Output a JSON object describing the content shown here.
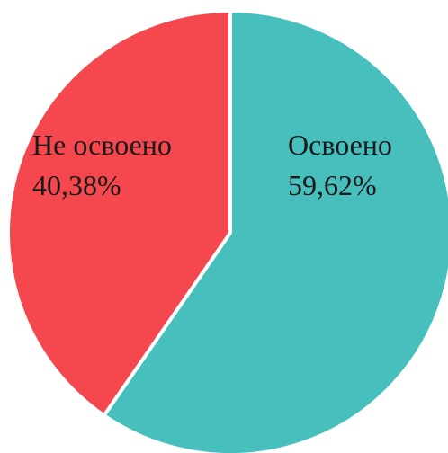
{
  "chart_data": {
    "type": "pie",
    "start_angle_deg": 0,
    "direction": "clockwise",
    "slices": [
      {
        "label": "Освоено",
        "value": 59.62,
        "value_text": "59,62%",
        "color": "#47bfbd"
      },
      {
        "label": "Не освоено",
        "value": 40.38,
        "value_text": "40,38%",
        "color": "#f5474e"
      }
    ],
    "slice_separator_color": "#ffffff",
    "legend": "none"
  }
}
